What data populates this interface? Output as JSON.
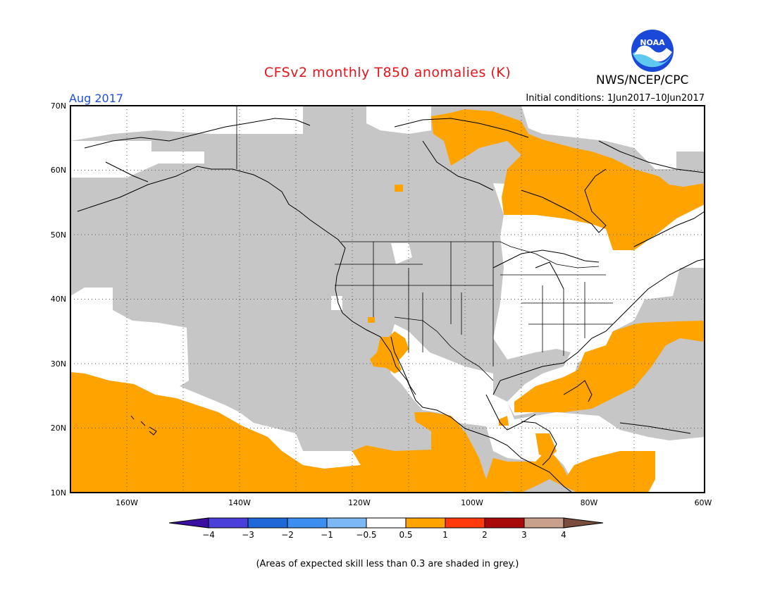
{
  "header": {
    "title": "CFSv2 monthly T850 anomalies (K)",
    "agency": "NWS/NCEP/CPC",
    "logo_text": "NOAA",
    "valid_month": "Aug 2017",
    "initial_conditions": "Initial conditions: 1Jun2017–10Jun2017"
  },
  "map": {
    "lat_labels": [
      "70N",
      "60N",
      "50N",
      "40N",
      "30N",
      "20N",
      "10N"
    ],
    "lon_labels": [
      "160W",
      "140W",
      "120W",
      "100W",
      "80W",
      "60W"
    ],
    "colors": {
      "skill_grey": "#c6c6c6",
      "warm_orange": "#ffa300",
      "neutral": "#ffffff"
    }
  },
  "legend": {
    "tick_labels": [
      "−4",
      "−3",
      "−2",
      "−1",
      "−0.5",
      "0.5",
      "1",
      "2",
      "3",
      "4"
    ],
    "colors": [
      "#3a0fa0",
      "#4a3fd8",
      "#1f68d8",
      "#3c8ff0",
      "#7cb8f4",
      "#ffffff",
      "#ffa300",
      "#ff3a0c",
      "#a80a0a",
      "#c8a08c",
      "#7a4c3c"
    ]
  },
  "footnote": "(Areas of expected skill less than 0.3 are shaded in grey.)"
}
